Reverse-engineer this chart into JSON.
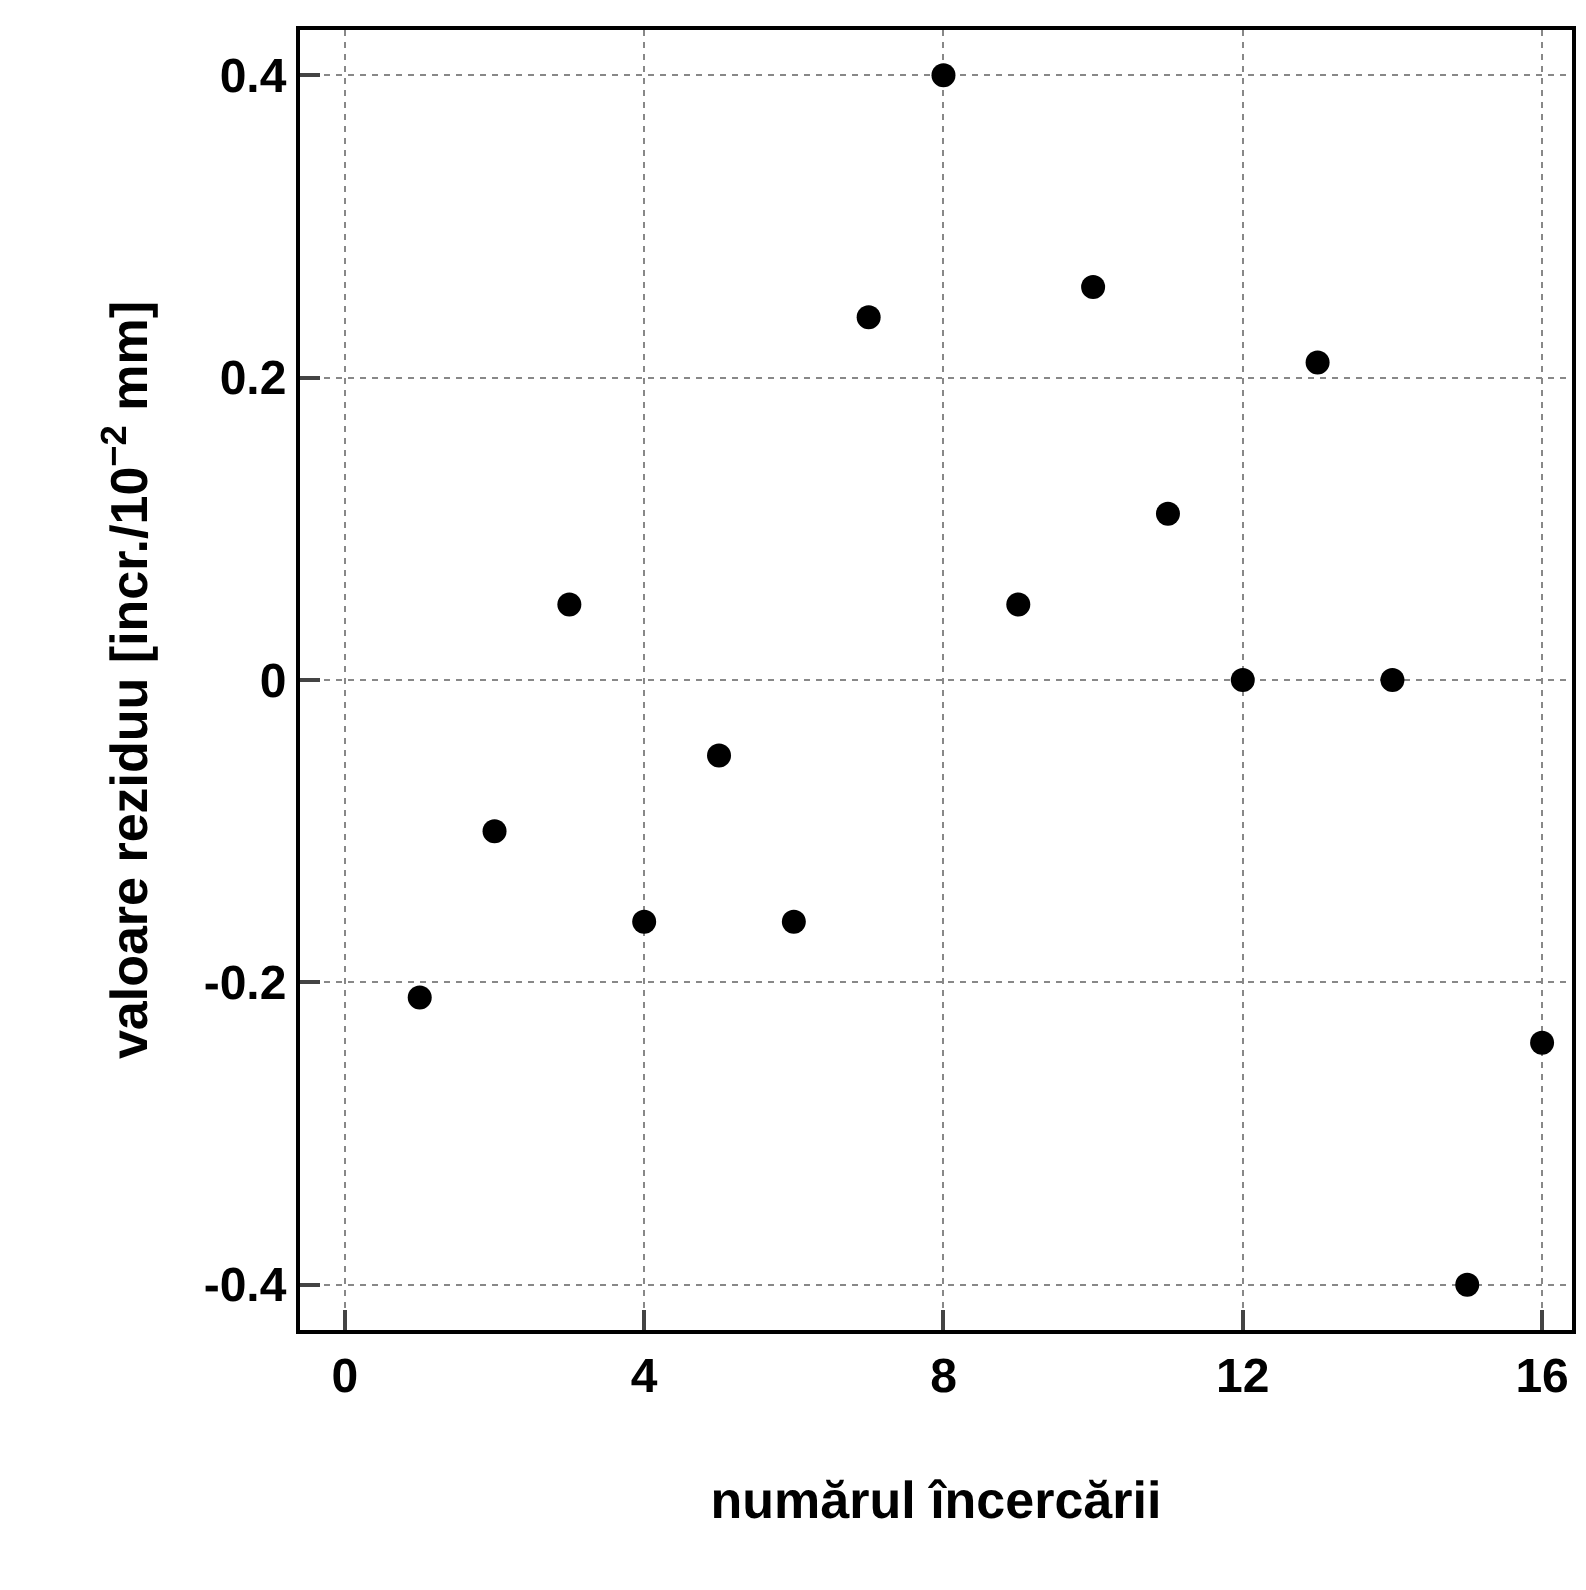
{
  "chart_data": {
    "type": "scatter",
    "xlabel": "numărul încercării",
    "ylabel": "valoare reziduu [incr./10$^{−2}$ mm]",
    "x": [
      1,
      2,
      3,
      4,
      5,
      6,
      7,
      8,
      9,
      10,
      11,
      12,
      13,
      14,
      15,
      16
    ],
    "series": [
      {
        "color": "#000000",
        "values": [
          -0.21,
          -0.1,
          0.05,
          -0.16,
          -0.05,
          -0.16,
          0.24,
          0.4,
          0.05,
          0.26,
          0.11,
          0.0,
          0.21,
          0.0,
          -0.4,
          -0.24
        ]
      }
    ],
    "xlim": [
      -0.6,
      16.4
    ],
    "ylim": [
      -0.43,
      0.43
    ],
    "xticks": [
      0,
      4,
      8,
      12,
      16
    ],
    "yticks": [
      -0.4,
      -0.2,
      0,
      0.2,
      0.4
    ],
    "grid": true,
    "marker": "circle"
  }
}
